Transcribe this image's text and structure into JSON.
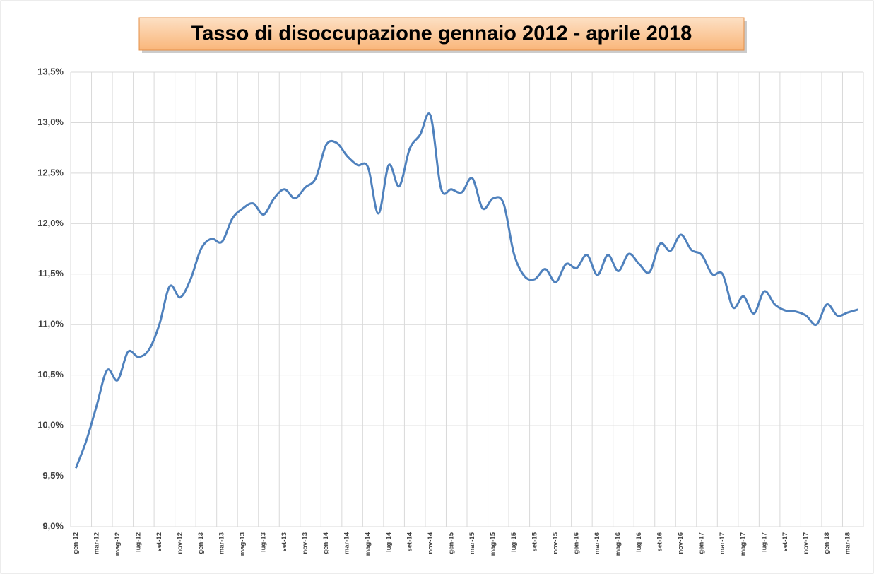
{
  "chart_data": {
    "type": "line",
    "title": "Tasso di disoccupazione gennaio 2012 - aprile 2018",
    "categories": [
      "gen-12",
      null,
      "mar-12",
      null,
      "mag-12",
      null,
      "lug-12",
      null,
      "set-12",
      null,
      "nov-12",
      null,
      "gen-13",
      null,
      "mar-13",
      null,
      "mag-13",
      null,
      "lug-13",
      null,
      "set-13",
      null,
      "nov-13",
      null,
      "gen-14",
      null,
      "mar-14",
      null,
      "mag-14",
      null,
      "lug-14",
      null,
      "set-14",
      null,
      "nov-14",
      null,
      "gen-15",
      null,
      "mar-15",
      null,
      "mag-15",
      null,
      "lug-15",
      null,
      "set-15",
      null,
      "nov-15",
      null,
      "gen-16",
      null,
      "mar-16",
      null,
      "mag-16",
      null,
      "lug-16",
      null,
      "set-16",
      null,
      "nov-16",
      null,
      "gen-17",
      null,
      "mar-17",
      null,
      "mag-17",
      null,
      "lug-17",
      null,
      "set-17",
      null,
      "nov-17",
      null,
      "gen-18",
      null,
      "mar-18",
      null
    ],
    "series": [
      {
        "name": "Tasso di disoccupazione",
        "color": "#4f81bd",
        "values": [
          9.58,
          9.85,
          10.2,
          10.55,
          10.45,
          10.73,
          10.68,
          10.75,
          11.0,
          11.38,
          11.27,
          11.45,
          11.75,
          11.85,
          11.82,
          12.05,
          12.15,
          12.2,
          12.09,
          12.25,
          12.34,
          12.25,
          12.36,
          12.45,
          12.78,
          12.8,
          12.67,
          12.58,
          12.56,
          12.1,
          12.58,
          12.37,
          12.74,
          12.88,
          13.07,
          12.35,
          12.34,
          12.31,
          12.45,
          12.15,
          12.25,
          12.2,
          11.7,
          11.48,
          11.45,
          11.55,
          11.42,
          11.6,
          11.56,
          11.69,
          11.49,
          11.69,
          11.53,
          11.7,
          11.6,
          11.52,
          11.8,
          11.73,
          11.89,
          11.74,
          11.69,
          11.5,
          11.5,
          11.17,
          11.28,
          11.11,
          11.33,
          11.2,
          11.14,
          11.13,
          11.09,
          11.0,
          11.2,
          11.09,
          11.12,
          11.15
        ]
      }
    ],
    "ylim": [
      9.0,
      13.5
    ],
    "yticks": [
      {
        "value": 9.0,
        "label": "9,0%"
      },
      {
        "value": 9.5,
        "label": "9,5%"
      },
      {
        "value": 10.0,
        "label": "10,0%"
      },
      {
        "value": 10.5,
        "label": "10,5%"
      },
      {
        "value": 11.0,
        "label": "11,0%"
      },
      {
        "value": 11.5,
        "label": "11,5%"
      },
      {
        "value": 12.0,
        "label": "12,0%"
      },
      {
        "value": 12.5,
        "label": "12,5%"
      },
      {
        "value": 13.0,
        "label": "13,0%"
      },
      {
        "value": 13.5,
        "label": "13,5%"
      }
    ],
    "grid": true
  }
}
